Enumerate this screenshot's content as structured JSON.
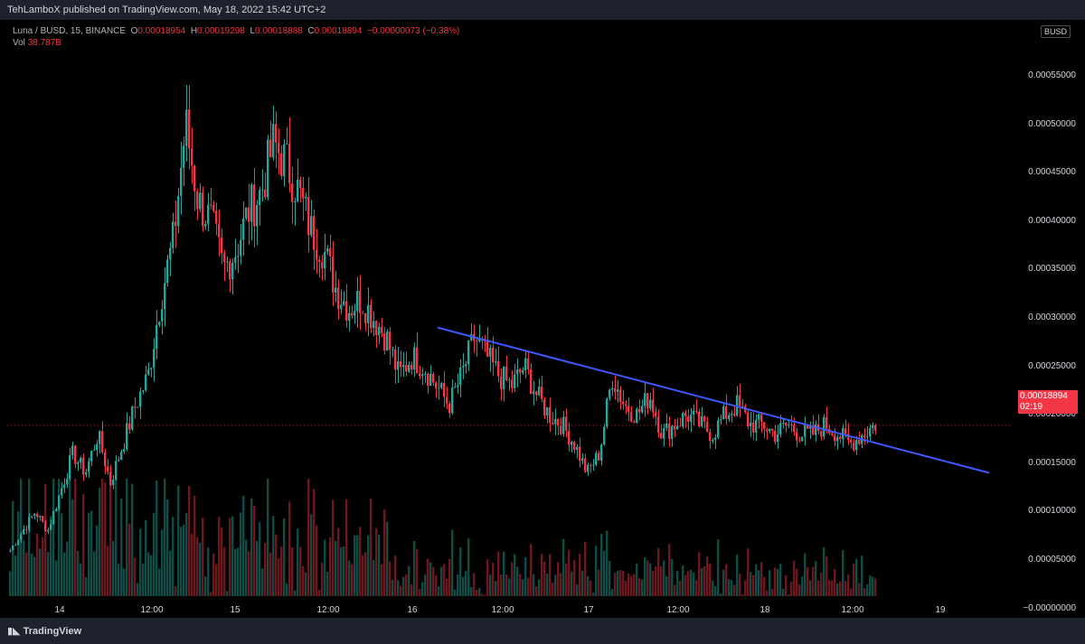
{
  "header": {
    "published": "TehLamboX published on TradingView.com, May 18, 2022 15:42 UTC+2"
  },
  "legend": {
    "symbol": "Luna / BUSD, 15, BINANCE",
    "o_label": "O",
    "o": "0.00018954",
    "h_label": "H",
    "h": "0.00019298",
    "l_label": "L",
    "l": "0.00018888",
    "c_label": "C",
    "c": "0.00018894",
    "change": "−0.00000073 (−0.38%)",
    "vol_label": "Vol",
    "vol": "38.787B"
  },
  "quote_currency": "BUSD",
  "price_tag": {
    "price": "0.00018894",
    "countdown": "02:19"
  },
  "footer": {
    "brand": "TradingView"
  },
  "colors": {
    "up": "#26a69a",
    "down": "#f23645",
    "trendline": "#3d5afe",
    "bg": "#000000",
    "panel": "#1e222d"
  },
  "chart_data": {
    "type": "candlestick",
    "title": "Luna / BUSD, 15, BINANCE",
    "y_ticks": [
      "0.00055000",
      "0.00050000",
      "0.00045000",
      "0.00040000",
      "0.00035000",
      "0.00030000",
      "0.00025000",
      "0.00020000",
      "0.00015000",
      "0.00010000",
      "0.00005000",
      "−0.00000000"
    ],
    "x_ticks": [
      "14",
      "12:00",
      "15",
      "12:00",
      "16",
      "12:00",
      "17",
      "12:00",
      "18",
      "12:00",
      "19"
    ],
    "close_series": [
      6e-05,
      8e-05,
      0.0001,
      8e-05,
      0.00012,
      0.00016,
      0.00014,
      0.00018,
      0.00013,
      0.00017,
      0.00021,
      0.00024,
      0.00032,
      0.00038,
      0.0005,
      0.00042,
      0.0004,
      0.00035,
      0.00037,
      0.00041,
      0.00043,
      0.00048,
      0.00046,
      0.00043,
      0.00039,
      0.00037,
      0.00033,
      0.00031,
      0.00032,
      0.0003,
      0.00028,
      0.00024,
      0.00026,
      0.00025,
      0.00023,
      0.00021,
      0.00024,
      0.00028,
      0.00026,
      0.00024,
      0.00023,
      0.00025,
      0.00022,
      0.0002,
      0.00019,
      0.00017,
      0.00014,
      0.00016,
      0.00024,
      0.00021,
      0.0002,
      0.00022,
      0.00018,
      0.00019,
      0.0002,
      0.00019,
      0.00018,
      0.0002,
      0.00021,
      0.00019,
      0.00019,
      0.00018,
      0.00019,
      0.00018,
      0.00018,
      0.00019,
      0.00018,
      0.00017,
      0.00018,
      0.00019
    ],
    "trendline": {
      "start": 0.00029,
      "end": 0.00014
    }
  }
}
